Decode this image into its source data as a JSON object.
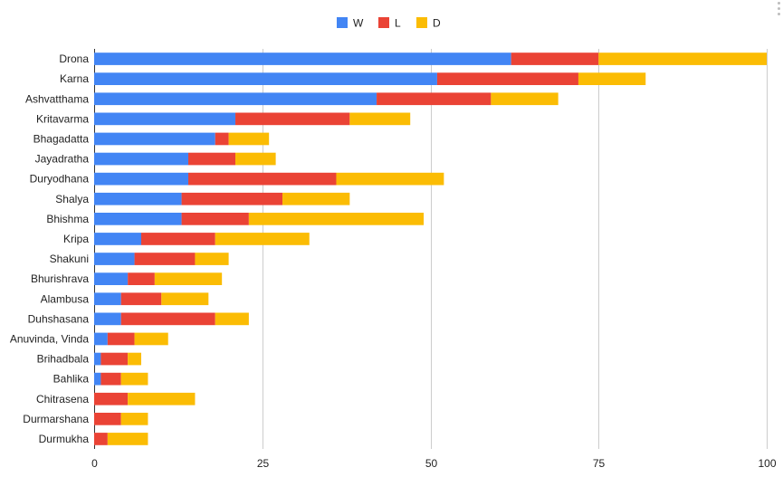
{
  "chart_data": {
    "type": "bar",
    "orientation": "horizontal",
    "stacked": true,
    "categories": [
      "Drona",
      "Karna",
      "Ashvatthama",
      "Kritavarma",
      "Bhagadatta",
      "Jayadratha",
      "Duryodhana",
      "Shalya",
      "Bhishma",
      "Kripa",
      "Shakuni",
      "Bhurishrava",
      "Alambusa",
      "Duhshasana",
      "Anuvinda, Vinda",
      "Brihadbala",
      "Bahlika",
      "Chitrasena",
      "Durmarshana",
      "Durmukha"
    ],
    "series": [
      {
        "name": "W",
        "color": "#4285f4",
        "values": [
          62,
          51,
          42,
          21,
          18,
          14,
          14,
          13,
          13,
          7,
          6,
          5,
          4,
          4,
          2,
          1,
          1,
          0,
          0,
          0
        ]
      },
      {
        "name": "L",
        "color": "#ea4335",
        "values": [
          13,
          21,
          17,
          17,
          2,
          7,
          22,
          15,
          10,
          11,
          9,
          4,
          6,
          14,
          4,
          4,
          3,
          5,
          4,
          2
        ]
      },
      {
        "name": "D",
        "color": "#fbbc04",
        "values": [
          25,
          10,
          10,
          9,
          6,
          6,
          16,
          10,
          26,
          14,
          5,
          10,
          7,
          5,
          5,
          2,
          4,
          10,
          4,
          6
        ]
      }
    ],
    "xlim": [
      0,
      100
    ],
    "xticks": [
      "0",
      "25",
      "50",
      "75",
      "100"
    ],
    "grid": true,
    "legend_position": "top",
    "title": "",
    "xlabel": "",
    "ylabel": ""
  }
}
